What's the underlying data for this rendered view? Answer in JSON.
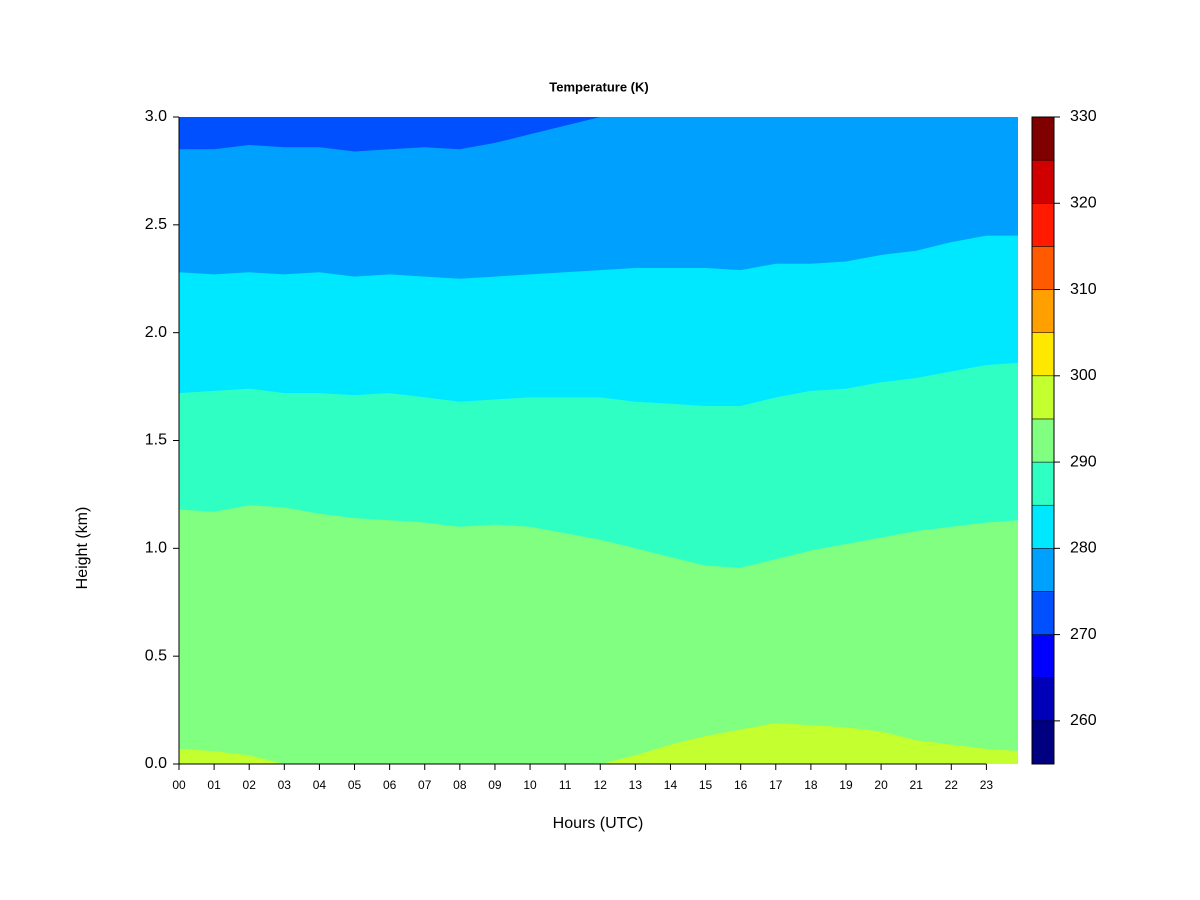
{
  "chart_data": {
    "type": "contour",
    "title": "Temperature (K)",
    "x_label": "Hours (UTC)",
    "y_label": "Height (km)",
    "x": [
      0,
      1,
      2,
      3,
      4,
      5,
      6,
      7,
      8,
      9,
      10,
      11,
      12,
      13,
      14,
      15,
      16,
      17,
      18,
      19,
      20,
      21,
      22,
      23,
      23.9
    ],
    "contours": [
      {
        "level": 275,
        "heights": [
          2.85,
          2.85,
          2.87,
          2.86,
          2.86,
          2.84,
          2.85,
          2.86,
          2.85,
          2.88,
          2.92,
          2.96,
          3.0,
          3.0,
          3.0,
          3.0,
          3.0,
          3.0,
          3.0,
          3.0,
          3.0,
          3.0,
          3.0,
          3.0,
          3.0
        ]
      },
      {
        "level": 280,
        "heights": [
          2.28,
          2.27,
          2.28,
          2.27,
          2.28,
          2.26,
          2.27,
          2.26,
          2.25,
          2.26,
          2.27,
          2.28,
          2.29,
          2.3,
          2.3,
          2.3,
          2.29,
          2.32,
          2.32,
          2.33,
          2.36,
          2.38,
          2.42,
          2.45,
          2.45
        ]
      },
      {
        "level": 285,
        "heights": [
          1.72,
          1.73,
          1.74,
          1.72,
          1.72,
          1.71,
          1.72,
          1.7,
          1.68,
          1.69,
          1.7,
          1.7,
          1.7,
          1.68,
          1.67,
          1.66,
          1.66,
          1.7,
          1.73,
          1.74,
          1.77,
          1.79,
          1.82,
          1.85,
          1.86
        ]
      },
      {
        "level": 290,
        "heights": [
          1.18,
          1.17,
          1.2,
          1.19,
          1.16,
          1.14,
          1.13,
          1.12,
          1.1,
          1.11,
          1.1,
          1.07,
          1.04,
          1.0,
          0.96,
          0.92,
          0.91,
          0.95,
          0.99,
          1.02,
          1.05,
          1.08,
          1.1,
          1.12,
          1.13
        ]
      },
      {
        "level": 295,
        "heights": [
          0.07,
          0.06,
          0.04,
          0.0,
          0.0,
          0.0,
          0.0,
          0.0,
          0.0,
          0.0,
          0.0,
          0.0,
          0.0,
          0.04,
          0.09,
          0.13,
          0.16,
          0.19,
          0.18,
          0.17,
          0.15,
          0.11,
          0.09,
          0.07,
          0.06
        ]
      }
    ],
    "background_level": 270,
    "xlim": [
      0,
      23.9
    ],
    "ylim": [
      0,
      3
    ],
    "xticks": [
      {
        "value": 0,
        "label": "00"
      },
      {
        "value": 1,
        "label": "01"
      },
      {
        "value": 2,
        "label": "02"
      },
      {
        "value": 3,
        "label": "03"
      },
      {
        "value": 4,
        "label": "04"
      },
      {
        "value": 5,
        "label": "05"
      },
      {
        "value": 6,
        "label": "06"
      },
      {
        "value": 7,
        "label": "07"
      },
      {
        "value": 8,
        "label": "08"
      },
      {
        "value": 9,
        "label": "09"
      },
      10,
      11,
      12,
      13,
      14,
      15,
      16,
      17,
      18,
      19,
      20,
      21,
      22,
      23
    ],
    "yticks": [
      {
        "value": 0,
        "label": "0.0"
      },
      0.5,
      {
        "value": 1,
        "label": "1.0"
      },
      1.5,
      {
        "value": 2,
        "label": "2.0"
      },
      2.5,
      {
        "value": 3,
        "label": "3.0"
      }
    ],
    "colorbar": {
      "levels": [
        255,
        260,
        265,
        270,
        275,
        280,
        285,
        290,
        295,
        300,
        305,
        310,
        315,
        320,
        325,
        330
      ],
      "colors": [
        "#000080",
        "#0000b8",
        "#0000ff",
        "#0050ff",
        "#00a0ff",
        "#00e8ff",
        "#30ffc4",
        "#80ff80",
        "#c4ff30",
        "#ffe800",
        "#ffa000",
        "#ff5a00",
        "#ff1a00",
        "#d00000",
        "#800000"
      ],
      "ticks": [
        260,
        270,
        280,
        290,
        300,
        310,
        320,
        330
      ]
    }
  }
}
